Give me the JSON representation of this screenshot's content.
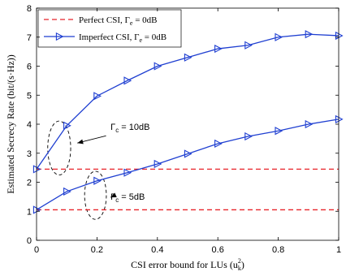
{
  "chart_data": {
    "type": "line",
    "xlabel": "CSI error bound for LUs (u",
    "xlabel_sub": "k",
    "xlabel_sup": "2",
    "xlabel_end": ")",
    "ylabel": "Estimated Secrecy Rate (bit/(s·Hz))",
    "xlim": [
      0,
      1
    ],
    "ylim": [
      0,
      8
    ],
    "x_ticks": [
      "0",
      "0.2",
      "0.4",
      "0.6",
      "0.8",
      "1"
    ],
    "y_ticks": [
      "0",
      "1",
      "2",
      "3",
      "4",
      "5",
      "6",
      "7",
      "8"
    ],
    "grid": false,
    "legend_position": "top-left",
    "legend": [
      {
        "prefix": "Perfect CSI, Γ",
        "sub": "e",
        "suffix": " = 0dB"
      },
      {
        "prefix": "Imperfect CSI, Γ",
        "sub": "e",
        "suffix": " = 0dB"
      }
    ],
    "series": [
      {
        "legend_index": 0,
        "color": "#e8242a",
        "style": "dashed",
        "marker": "none",
        "x": [
          0,
          1
        ],
        "y": [
          2.45,
          2.45
        ]
      },
      {
        "legend_index": 0,
        "color": "#e8242a",
        "style": "dashed",
        "marker": "none",
        "x": [
          0,
          1
        ],
        "y": [
          1.05,
          1.05
        ]
      },
      {
        "legend_index": 1,
        "color": "#1f3fd1",
        "style": "solid",
        "marker": "triangle-right",
        "x": [
          0,
          0.1,
          0.2,
          0.3,
          0.4,
          0.5,
          0.6,
          0.7,
          0.8,
          0.9,
          1.0
        ],
        "y": [
          2.45,
          3.95,
          4.97,
          5.5,
          6.0,
          6.3,
          6.6,
          6.72,
          7.0,
          7.1,
          7.05
        ]
      },
      {
        "legend_index": 1,
        "color": "#1f3fd1",
        "style": "solid",
        "marker": "triangle-right",
        "x": [
          0,
          0.1,
          0.2,
          0.3,
          0.4,
          0.5,
          0.6,
          0.7,
          0.8,
          0.9,
          1.0
        ],
        "y": [
          1.05,
          1.68,
          2.05,
          2.33,
          2.63,
          2.98,
          3.33,
          3.58,
          3.77,
          4.0,
          4.17
        ]
      }
    ],
    "annotations": [
      {
        "label_prefix": "Γ",
        "label_sub": "c",
        "label_suffix": " = 10dB",
        "text_x": 0.245,
        "text_y": 3.8,
        "ellipse": {
          "cx": 0.075,
          "cy": 3.18,
          "rx": 0.038,
          "ry": 0.93
        },
        "arrow_from": {
          "x": 0.23,
          "y": 3.6
        },
        "arrow_to": {
          "x": 0.135,
          "y": 3.35
        }
      },
      {
        "label_prefix": "Γ",
        "label_sub": "c",
        "label_suffix": " = 5dB",
        "text_x": 0.245,
        "text_y": 1.4,
        "ellipse": {
          "cx": 0.195,
          "cy": 1.55,
          "rx": 0.036,
          "ry": 0.83
        },
        "arrow_from": {
          "x": 0.26,
          "y": 1.55
        },
        "arrow_to": {
          "x": 0.245,
          "y": 1.48
        }
      }
    ]
  }
}
